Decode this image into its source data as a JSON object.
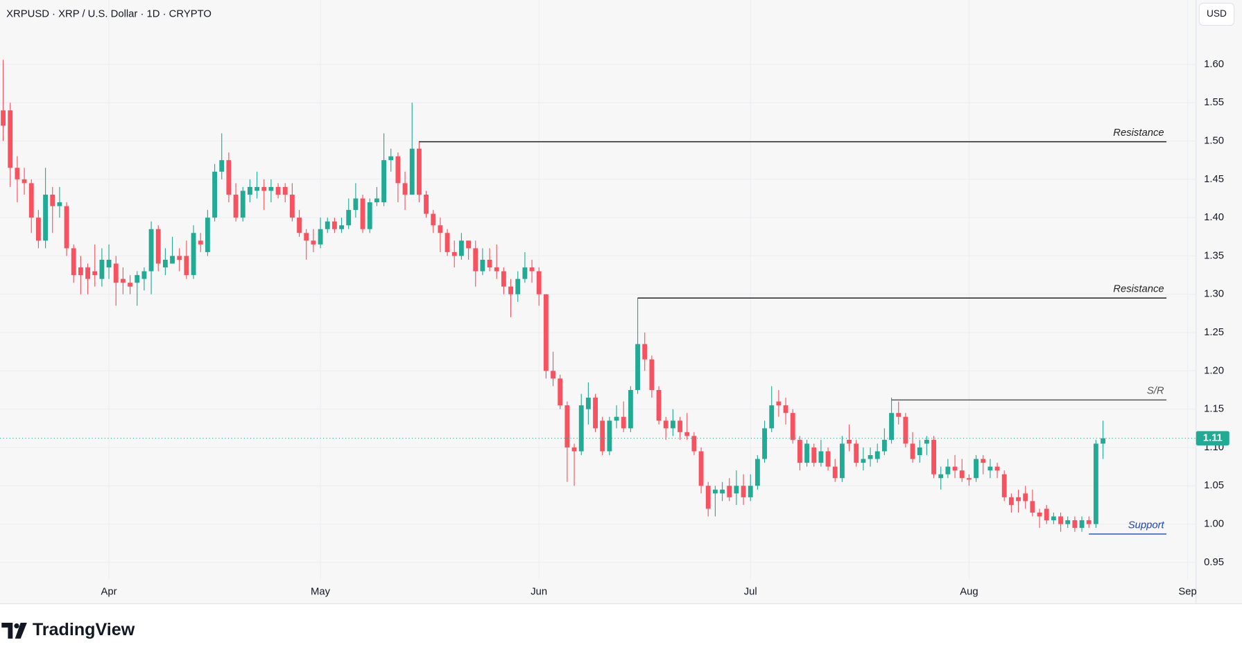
{
  "chart_data": {
    "type": "candlestick",
    "title": "XRPUSD · XRP / U.S. Dollar · 1D · CRYPTO",
    "currency_button": "USD",
    "brand": "TradingView",
    "up_color": "#22ab94",
    "down_color": "#f7525f",
    "grid": true,
    "xlim": [
      -0.45,
      169.2
    ],
    "xticks": [
      {
        "value": 15,
        "label": "Apr"
      },
      {
        "value": 45,
        "label": "May"
      },
      {
        "value": 76,
        "label": "Jun"
      },
      {
        "value": 106,
        "label": "Jul"
      },
      {
        "value": 137,
        "label": "Aug"
      },
      {
        "value": 168,
        "label": "Sep"
      }
    ],
    "ylim": [
      0.927,
      1.684
    ],
    "yticks": [
      {
        "value": 0.95,
        "label": "0.95"
      },
      {
        "value": 1.0,
        "label": "1.00"
      },
      {
        "value": 1.05,
        "label": "1.05"
      },
      {
        "value": 1.1,
        "label": "1.10"
      },
      {
        "value": 1.15,
        "label": "1.15"
      },
      {
        "value": 1.2,
        "label": "1.20"
      },
      {
        "value": 1.25,
        "label": "1.25"
      },
      {
        "value": 1.3,
        "label": "1.30"
      },
      {
        "value": 1.35,
        "label": "1.35"
      },
      {
        "value": 1.4,
        "label": "1.40"
      },
      {
        "value": 1.45,
        "label": "1.45"
      },
      {
        "value": 1.5,
        "label": "1.50"
      },
      {
        "value": 1.55,
        "label": "1.55"
      },
      {
        "value": 1.6,
        "label": "1.60"
      }
    ],
    "last_price_label": "1.11",
    "levels": [
      {
        "label": "Resistance",
        "value": 1.499,
        "from": 59,
        "to": 165,
        "color": "#222222"
      },
      {
        "label": "Resistance",
        "value": 1.295,
        "from": 90,
        "to": 165,
        "color": "#222222"
      },
      {
        "label": "S/R",
        "value": 1.162,
        "from": 126,
        "to": 165,
        "color": "#555555"
      },
      {
        "label": "Support",
        "value": 0.987,
        "from": 154,
        "to": 165,
        "color": "#1e44c0"
      }
    ],
    "candles": [
      {
        "o": 1.54,
        "h": 1.606,
        "l": 1.5,
        "c": 1.52
      },
      {
        "o": 1.54,
        "h": 1.55,
        "l": 1.44,
        "c": 1.465
      },
      {
        "o": 1.465,
        "h": 1.48,
        "l": 1.42,
        "c": 1.45
      },
      {
        "o": 1.45,
        "h": 1.465,
        "l": 1.43,
        "c": 1.445
      },
      {
        "o": 1.445,
        "h": 1.45,
        "l": 1.38,
        "c": 1.4
      },
      {
        "o": 1.4,
        "h": 1.41,
        "l": 1.36,
        "c": 1.37
      },
      {
        "o": 1.37,
        "h": 1.465,
        "l": 1.36,
        "c": 1.43
      },
      {
        "o": 1.43,
        "h": 1.44,
        "l": 1.38,
        "c": 1.415
      },
      {
        "o": 1.415,
        "h": 1.44,
        "l": 1.4,
        "c": 1.42
      },
      {
        "o": 1.415,
        "h": 1.42,
        "l": 1.35,
        "c": 1.36
      },
      {
        "o": 1.36,
        "h": 1.365,
        "l": 1.315,
        "c": 1.325
      },
      {
        "o": 1.335,
        "h": 1.35,
        "l": 1.3,
        "c": 1.325
      },
      {
        "o": 1.335,
        "h": 1.34,
        "l": 1.3,
        "c": 1.32
      },
      {
        "o": 1.33,
        "h": 1.365,
        "l": 1.31,
        "c": 1.325
      },
      {
        "o": 1.32,
        "h": 1.36,
        "l": 1.31,
        "c": 1.345
      },
      {
        "o": 1.335,
        "h": 1.365,
        "l": 1.32,
        "c": 1.345
      },
      {
        "o": 1.34,
        "h": 1.35,
        "l": 1.285,
        "c": 1.315
      },
      {
        "o": 1.32,
        "h": 1.335,
        "l": 1.3,
        "c": 1.315
      },
      {
        "o": 1.315,
        "h": 1.325,
        "l": 1.3,
        "c": 1.31
      },
      {
        "o": 1.315,
        "h": 1.33,
        "l": 1.285,
        "c": 1.325
      },
      {
        "o": 1.32,
        "h": 1.335,
        "l": 1.305,
        "c": 1.33
      },
      {
        "o": 1.33,
        "h": 1.395,
        "l": 1.3,
        "c": 1.385
      },
      {
        "o": 1.385,
        "h": 1.39,
        "l": 1.33,
        "c": 1.34
      },
      {
        "o": 1.335,
        "h": 1.36,
        "l": 1.325,
        "c": 1.345
      },
      {
        "o": 1.34,
        "h": 1.375,
        "l": 1.34,
        "c": 1.35
      },
      {
        "o": 1.35,
        "h": 1.36,
        "l": 1.33,
        "c": 1.345
      },
      {
        "o": 1.35,
        "h": 1.37,
        "l": 1.32,
        "c": 1.325
      },
      {
        "o": 1.325,
        "h": 1.39,
        "l": 1.32,
        "c": 1.38
      },
      {
        "o": 1.37,
        "h": 1.38,
        "l": 1.355,
        "c": 1.365
      },
      {
        "o": 1.355,
        "h": 1.41,
        "l": 1.35,
        "c": 1.4
      },
      {
        "o": 1.4,
        "h": 1.47,
        "l": 1.395,
        "c": 1.46
      },
      {
        "o": 1.46,
        "h": 1.51,
        "l": 1.45,
        "c": 1.475
      },
      {
        "o": 1.475,
        "h": 1.485,
        "l": 1.42,
        "c": 1.43
      },
      {
        "o": 1.43,
        "h": 1.445,
        "l": 1.395,
        "c": 1.4
      },
      {
        "o": 1.4,
        "h": 1.44,
        "l": 1.395,
        "c": 1.435
      },
      {
        "o": 1.43,
        "h": 1.45,
        "l": 1.42,
        "c": 1.44
      },
      {
        "o": 1.435,
        "h": 1.46,
        "l": 1.425,
        "c": 1.44
      },
      {
        "o": 1.44,
        "h": 1.45,
        "l": 1.41,
        "c": 1.435
      },
      {
        "o": 1.435,
        "h": 1.45,
        "l": 1.42,
        "c": 1.44
      },
      {
        "o": 1.44,
        "h": 1.445,
        "l": 1.425,
        "c": 1.43
      },
      {
        "o": 1.44,
        "h": 1.445,
        "l": 1.42,
        "c": 1.43
      },
      {
        "o": 1.43,
        "h": 1.445,
        "l": 1.395,
        "c": 1.4
      },
      {
        "o": 1.4,
        "h": 1.41,
        "l": 1.375,
        "c": 1.38
      },
      {
        "o": 1.38,
        "h": 1.385,
        "l": 1.345,
        "c": 1.37
      },
      {
        "o": 1.37,
        "h": 1.385,
        "l": 1.355,
        "c": 1.365
      },
      {
        "o": 1.365,
        "h": 1.4,
        "l": 1.36,
        "c": 1.385
      },
      {
        "o": 1.385,
        "h": 1.4,
        "l": 1.38,
        "c": 1.395
      },
      {
        "o": 1.395,
        "h": 1.4,
        "l": 1.38,
        "c": 1.385
      },
      {
        "o": 1.385,
        "h": 1.4,
        "l": 1.38,
        "c": 1.39
      },
      {
        "o": 1.39,
        "h": 1.425,
        "l": 1.385,
        "c": 1.41
      },
      {
        "o": 1.41,
        "h": 1.445,
        "l": 1.4,
        "c": 1.425
      },
      {
        "o": 1.425,
        "h": 1.43,
        "l": 1.38,
        "c": 1.385
      },
      {
        "o": 1.385,
        "h": 1.425,
        "l": 1.38,
        "c": 1.42
      },
      {
        "o": 1.42,
        "h": 1.44,
        "l": 1.415,
        "c": 1.425
      },
      {
        "o": 1.42,
        "h": 1.51,
        "l": 1.415,
        "c": 1.475
      },
      {
        "o": 1.475,
        "h": 1.49,
        "l": 1.46,
        "c": 1.48
      },
      {
        "o": 1.48,
        "h": 1.485,
        "l": 1.42,
        "c": 1.445
      },
      {
        "o": 1.445,
        "h": 1.46,
        "l": 1.41,
        "c": 1.43
      },
      {
        "o": 1.43,
        "h": 1.55,
        "l": 1.43,
        "c": 1.49
      },
      {
        "o": 1.49,
        "h": 1.5,
        "l": 1.42,
        "c": 1.43
      },
      {
        "o": 1.43,
        "h": 1.435,
        "l": 1.4,
        "c": 1.405
      },
      {
        "o": 1.405,
        "h": 1.41,
        "l": 1.38,
        "c": 1.39
      },
      {
        "o": 1.39,
        "h": 1.4,
        "l": 1.355,
        "c": 1.38
      },
      {
        "o": 1.38,
        "h": 1.385,
        "l": 1.35,
        "c": 1.355
      },
      {
        "o": 1.355,
        "h": 1.37,
        "l": 1.335,
        "c": 1.35
      },
      {
        "o": 1.35,
        "h": 1.38,
        "l": 1.345,
        "c": 1.37
      },
      {
        "o": 1.37,
        "h": 1.37,
        "l": 1.345,
        "c": 1.36
      },
      {
        "o": 1.36,
        "h": 1.37,
        "l": 1.31,
        "c": 1.33
      },
      {
        "o": 1.33,
        "h": 1.36,
        "l": 1.325,
        "c": 1.345
      },
      {
        "o": 1.345,
        "h": 1.36,
        "l": 1.33,
        "c": 1.335
      },
      {
        "o": 1.335,
        "h": 1.365,
        "l": 1.32,
        "c": 1.33
      },
      {
        "o": 1.33,
        "h": 1.335,
        "l": 1.3,
        "c": 1.31
      },
      {
        "o": 1.31,
        "h": 1.32,
        "l": 1.27,
        "c": 1.3
      },
      {
        "o": 1.3,
        "h": 1.33,
        "l": 1.29,
        "c": 1.32
      },
      {
        "o": 1.32,
        "h": 1.355,
        "l": 1.315,
        "c": 1.335
      },
      {
        "o": 1.335,
        "h": 1.345,
        "l": 1.315,
        "c": 1.33
      },
      {
        "o": 1.33,
        "h": 1.335,
        "l": 1.285,
        "c": 1.3
      },
      {
        "o": 1.3,
        "h": 1.3,
        "l": 1.19,
        "c": 1.2
      },
      {
        "o": 1.2,
        "h": 1.225,
        "l": 1.18,
        "c": 1.19
      },
      {
        "o": 1.19,
        "h": 1.195,
        "l": 1.15,
        "c": 1.155
      },
      {
        "o": 1.155,
        "h": 1.16,
        "l": 1.055,
        "c": 1.1
      },
      {
        "o": 1.1,
        "h": 1.105,
        "l": 1.05,
        "c": 1.095
      },
      {
        "o": 1.095,
        "h": 1.17,
        "l": 1.09,
        "c": 1.155
      },
      {
        "o": 1.15,
        "h": 1.185,
        "l": 1.13,
        "c": 1.165
      },
      {
        "o": 1.165,
        "h": 1.17,
        "l": 1.12,
        "c": 1.125
      },
      {
        "o": 1.135,
        "h": 1.14,
        "l": 1.09,
        "c": 1.095
      },
      {
        "o": 1.095,
        "h": 1.14,
        "l": 1.09,
        "c": 1.135
      },
      {
        "o": 1.135,
        "h": 1.155,
        "l": 1.125,
        "c": 1.14
      },
      {
        "o": 1.14,
        "h": 1.16,
        "l": 1.12,
        "c": 1.125
      },
      {
        "o": 1.125,
        "h": 1.18,
        "l": 1.12,
        "c": 1.175
      },
      {
        "o": 1.175,
        "h": 1.295,
        "l": 1.17,
        "c": 1.235
      },
      {
        "o": 1.235,
        "h": 1.25,
        "l": 1.2,
        "c": 1.215
      },
      {
        "o": 1.215,
        "h": 1.22,
        "l": 1.165,
        "c": 1.175
      },
      {
        "o": 1.175,
        "h": 1.18,
        "l": 1.13,
        "c": 1.135
      },
      {
        "o": 1.135,
        "h": 1.14,
        "l": 1.11,
        "c": 1.125
      },
      {
        "o": 1.125,
        "h": 1.15,
        "l": 1.115,
        "c": 1.135
      },
      {
        "o": 1.135,
        "h": 1.14,
        "l": 1.11,
        "c": 1.12
      },
      {
        "o": 1.12,
        "h": 1.145,
        "l": 1.11,
        "c": 1.115
      },
      {
        "o": 1.115,
        "h": 1.12,
        "l": 1.09,
        "c": 1.095
      },
      {
        "o": 1.095,
        "h": 1.1,
        "l": 1.04,
        "c": 1.05
      },
      {
        "o": 1.05,
        "h": 1.055,
        "l": 1.01,
        "c": 1.02
      },
      {
        "o": 1.04,
        "h": 1.05,
        "l": 1.01,
        "c": 1.045
      },
      {
        "o": 1.04,
        "h": 1.055,
        "l": 1.03,
        "c": 1.045
      },
      {
        "o": 1.05,
        "h": 1.06,
        "l": 1.03,
        "c": 1.035
      },
      {
        "o": 1.04,
        "h": 1.07,
        "l": 1.025,
        "c": 1.05
      },
      {
        "o": 1.05,
        "h": 1.065,
        "l": 1.025,
        "c": 1.035
      },
      {
        "o": 1.035,
        "h": 1.065,
        "l": 1.03,
        "c": 1.05
      },
      {
        "o": 1.05,
        "h": 1.09,
        "l": 1.045,
        "c": 1.085
      },
      {
        "o": 1.085,
        "h": 1.135,
        "l": 1.08,
        "c": 1.125
      },
      {
        "o": 1.125,
        "h": 1.18,
        "l": 1.12,
        "c": 1.155
      },
      {
        "o": 1.16,
        "h": 1.175,
        "l": 1.14,
        "c": 1.155
      },
      {
        "o": 1.155,
        "h": 1.165,
        "l": 1.13,
        "c": 1.145
      },
      {
        "o": 1.145,
        "h": 1.15,
        "l": 1.105,
        "c": 1.11
      },
      {
        "o": 1.11,
        "h": 1.115,
        "l": 1.07,
        "c": 1.08
      },
      {
        "o": 1.08,
        "h": 1.11,
        "l": 1.075,
        "c": 1.105
      },
      {
        "o": 1.1,
        "h": 1.105,
        "l": 1.075,
        "c": 1.08
      },
      {
        "o": 1.08,
        "h": 1.11,
        "l": 1.075,
        "c": 1.095
      },
      {
        "o": 1.095,
        "h": 1.1,
        "l": 1.07,
        "c": 1.075
      },
      {
        "o": 1.075,
        "h": 1.085,
        "l": 1.055,
        "c": 1.06
      },
      {
        "o": 1.06,
        "h": 1.115,
        "l": 1.055,
        "c": 1.105
      },
      {
        "o": 1.11,
        "h": 1.13,
        "l": 1.095,
        "c": 1.105
      },
      {
        "o": 1.105,
        "h": 1.11,
        "l": 1.075,
        "c": 1.08
      },
      {
        "o": 1.08,
        "h": 1.1,
        "l": 1.07,
        "c": 1.085
      },
      {
        "o": 1.085,
        "h": 1.1,
        "l": 1.075,
        "c": 1.09
      },
      {
        "o": 1.085,
        "h": 1.105,
        "l": 1.08,
        "c": 1.095
      },
      {
        "o": 1.095,
        "h": 1.125,
        "l": 1.09,
        "c": 1.11
      },
      {
        "o": 1.11,
        "h": 1.165,
        "l": 1.105,
        "c": 1.145
      },
      {
        "o": 1.145,
        "h": 1.16,
        "l": 1.13,
        "c": 1.14
      },
      {
        "o": 1.14,
        "h": 1.145,
        "l": 1.1,
        "c": 1.105
      },
      {
        "o": 1.105,
        "h": 1.12,
        "l": 1.08,
        "c": 1.085
      },
      {
        "o": 1.09,
        "h": 1.11,
        "l": 1.08,
        "c": 1.1
      },
      {
        "o": 1.105,
        "h": 1.115,
        "l": 1.09,
        "c": 1.11
      },
      {
        "o": 1.11,
        "h": 1.115,
        "l": 1.06,
        "c": 1.065
      },
      {
        "o": 1.06,
        "h": 1.075,
        "l": 1.045,
        "c": 1.065
      },
      {
        "o": 1.065,
        "h": 1.085,
        "l": 1.06,
        "c": 1.075
      },
      {
        "o": 1.075,
        "h": 1.09,
        "l": 1.06,
        "c": 1.07
      },
      {
        "o": 1.07,
        "h": 1.085,
        "l": 1.055,
        "c": 1.06
      },
      {
        "o": 1.06,
        "h": 1.065,
        "l": 1.05,
        "c": 1.058
      },
      {
        "o": 1.06,
        "h": 1.09,
        "l": 1.055,
        "c": 1.085
      },
      {
        "o": 1.085,
        "h": 1.09,
        "l": 1.065,
        "c": 1.08
      },
      {
        "o": 1.07,
        "h": 1.085,
        "l": 1.06,
        "c": 1.075
      },
      {
        "o": 1.075,
        "h": 1.08,
        "l": 1.06,
        "c": 1.07
      },
      {
        "o": 1.065,
        "h": 1.07,
        "l": 1.03,
        "c": 1.035
      },
      {
        "o": 1.035,
        "h": 1.04,
        "l": 1.015,
        "c": 1.025
      },
      {
        "o": 1.035,
        "h": 1.045,
        "l": 1.015,
        "c": 1.03
      },
      {
        "o": 1.04,
        "h": 1.05,
        "l": 1.02,
        "c": 1.03
      },
      {
        "o": 1.03,
        "h": 1.045,
        "l": 1.01,
        "c": 1.015
      },
      {
        "o": 1.015,
        "h": 1.02,
        "l": 0.995,
        "c": 1.01
      },
      {
        "o": 1.02,
        "h": 1.025,
        "l": 1.0,
        "c": 1.005
      },
      {
        "o": 1.005,
        "h": 1.015,
        "l": 1.0,
        "c": 1.01
      },
      {
        "o": 1.01,
        "h": 1.015,
        "l": 0.99,
        "c": 1.0
      },
      {
        "o": 1.0,
        "h": 1.01,
        "l": 0.995,
        "c": 1.005
      },
      {
        "o": 1.005,
        "h": 1.01,
        "l": 0.99,
        "c": 0.995
      },
      {
        "o": 0.995,
        "h": 1.01,
        "l": 0.99,
        "c": 1.005
      },
      {
        "o": 1.005,
        "h": 1.01,
        "l": 0.995,
        "c": 1.0
      },
      {
        "o": 1.0,
        "h": 1.11,
        "l": 0.995,
        "c": 1.105
      },
      {
        "o": 1.105,
        "h": 1.135,
        "l": 1.085,
        "c": 1.112
      }
    ]
  }
}
